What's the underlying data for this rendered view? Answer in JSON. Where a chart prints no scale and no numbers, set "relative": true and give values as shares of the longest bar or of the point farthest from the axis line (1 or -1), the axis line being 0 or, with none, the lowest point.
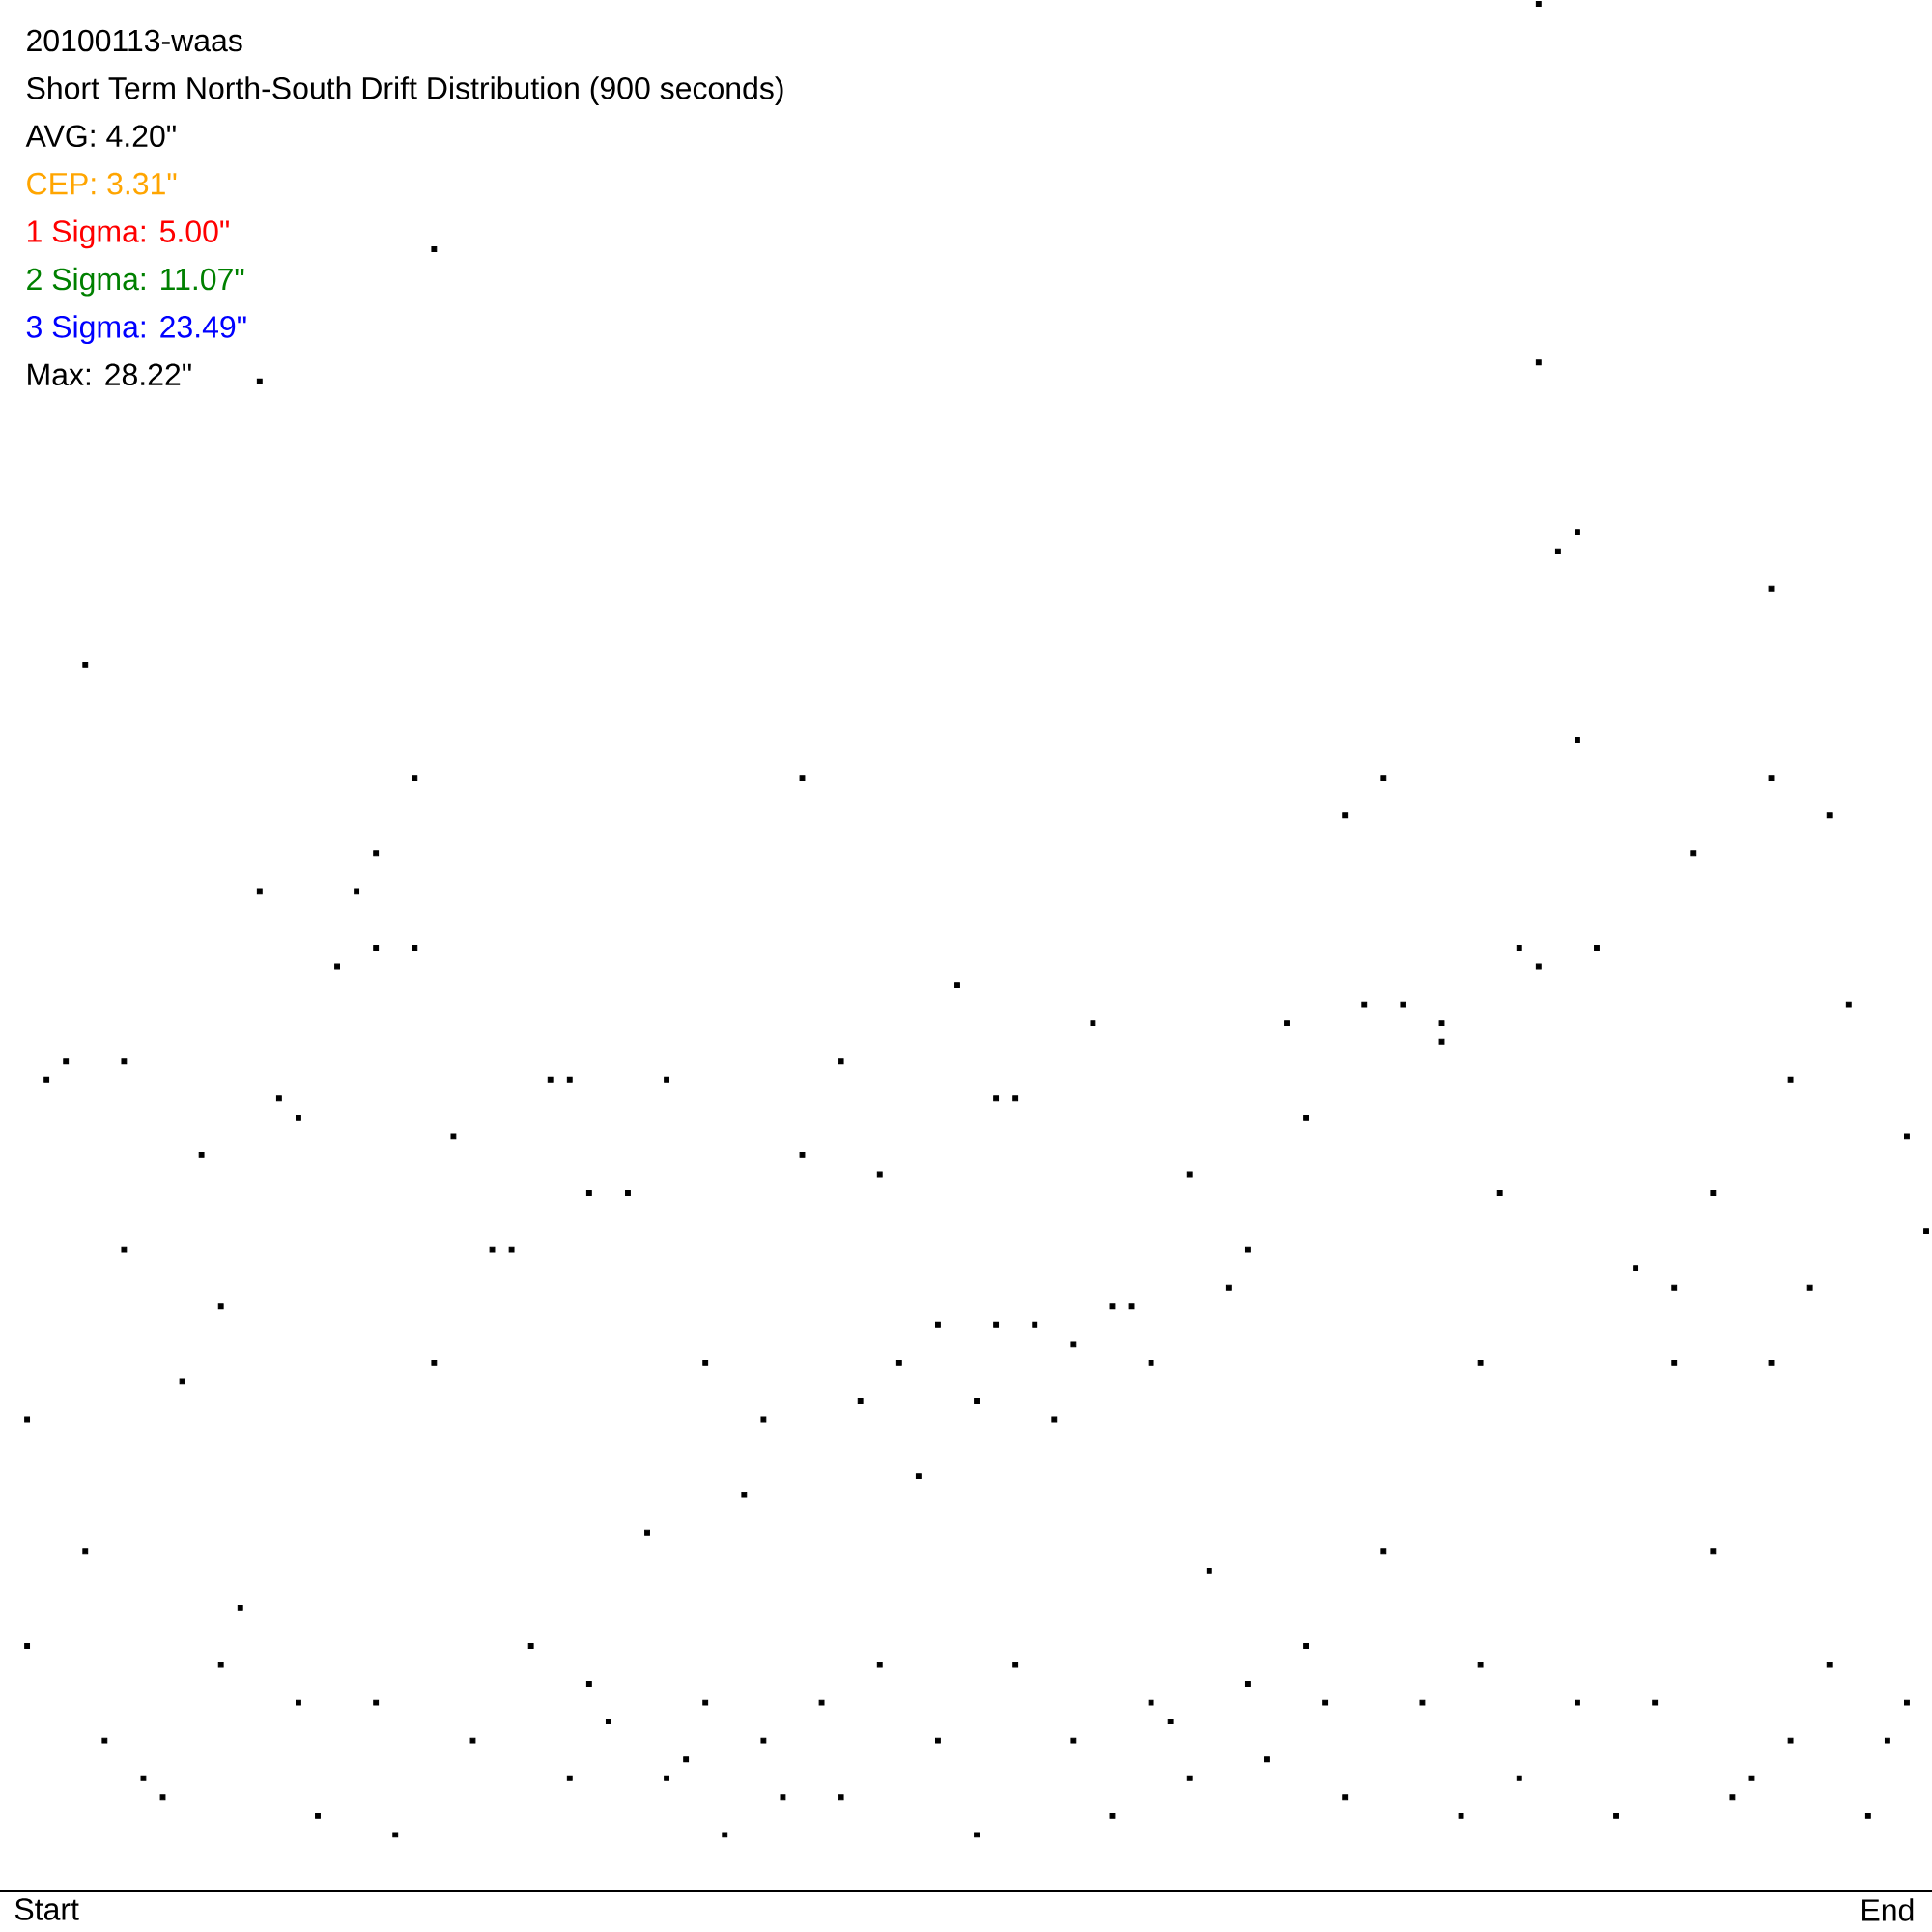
{
  "chart_data": {
    "type": "scatter",
    "title": "20100113-waas",
    "subtitle": "Short Term North-South Drift Distribution (900 seconds)",
    "annotations": [
      "AVG: 4.20\"",
      "CEP: 3.31\"",
      "1 Sigma: 5.00\"",
      "2 Sigma: 11.07\"",
      "3 Sigma: 23.49\"",
      "Max: 28.22\""
    ],
    "relative": true,
    "marker": "square",
    "tick_labels": "x",
    "categories": [
      null,
      "Start",
      null,
      null,
      null,
      null,
      null,
      null,
      null,
      null,
      null,
      null,
      null,
      null,
      null,
      null,
      null,
      null,
      null,
      null,
      null,
      null,
      null,
      null,
      null,
      null,
      null,
      null,
      null,
      null,
      null,
      null,
      null,
      null,
      null,
      null,
      null,
      null,
      null,
      null,
      null,
      null,
      null,
      null,
      null,
      null,
      null,
      null,
      null,
      null,
      null,
      null,
      null,
      null,
      null,
      null,
      null,
      null,
      null,
      null,
      null,
      null,
      null,
      null,
      null,
      null,
      null,
      null,
      null,
      null,
      null,
      null,
      null,
      null,
      null,
      null,
      null,
      null,
      null,
      null,
      null,
      null,
      null,
      null,
      null,
      null,
      null,
      null,
      null,
      null,
      null,
      null,
      null,
      null,
      null,
      null,
      "End",
      null,
      null
    ],
    "series": [
      {
        "color": "#000000",
        "values": [
          0.25,
          0.43,
          0.44,
          0.65,
          0.08,
          0.34,
          0.06,
          0.05,
          0.27,
          0.39,
          0.31,
          0.15,
          0.53,
          0.42,
          0.41,
          0.04,
          0.49,
          0.53,
          0.5,
          0.03,
          0.5,
          0.87,
          0.4,
          0.08,
          0.34,
          0.34,
          0.13,
          0.43,
          0.43,
          0.37,
          0.09,
          0.37,
          0.19,
          0.43,
          0.07,
          0.28,
          0.03,
          0.21,
          0.25,
          0.05,
          0.59,
          0.1,
          0.44,
          0.26,
          0.38,
          0.28,
          0.22,
          0.3,
          0.48,
          0.26,
          0.3,
          0.42,
          0.3,
          0.25,
          0.29,
          0.46,
          0.31,
          0.31,
          0.28,
          0.09,
          0.38,
          0.17,
          0.32,
          0.34,
          0.07,
          0.46,
          0.41,
          0.1,
          0.57,
          0.47,
          0.59,
          0.47,
          0.1,
          0.45,
          0.04,
          0.28,
          0.37,
          0.5,
          1.0,
          0.71,
          0.72,
          0.5,
          0.04,
          0.33,
          0.1,
          0.32,
          0.55,
          0.37,
          0.05,
          0.06,
          0.69,
          0.43,
          0.32,
          0.57,
          0.47,
          0.04,
          0.08,
          0.4,
          0.35
        ]
      },
      {
        "color": "#000000",
        "values": [
          0.13,
          null,
          null,
          0.18,
          null,
          0.44,
          null,
          null,
          null,
          null,
          0.12,
          null,
          0.8,
          null,
          0.1,
          null,
          null,
          null,
          0.55,
          null,
          0.59,
          0.28,
          null,
          null,
          null,
          null,
          null,
          null,
          0.06,
          0.11,
          null,
          null,
          null,
          0.06,
          null,
          0.1,
          null,
          null,
          0.08,
          null,
          0.39,
          null,
          0.05,
          null,
          0.12,
          null,
          null,
          0.08,
          null,
          0.03,
          0.42,
          0.12,
          null,
          null,
          0.08,
          null,
          0.04,
          null,
          0.1,
          null,
          0.06,
          null,
          null,
          0.11,
          null,
          null,
          0.13,
          null,
          0.05,
          null,
          0.18,
          null,
          null,
          0.46,
          null,
          0.12,
          null,
          0.06,
          0.81,
          null,
          0.61,
          null,
          null,
          null,
          null,
          0.28,
          null,
          0.18,
          null,
          null,
          0.59,
          0.08,
          null,
          0.12,
          null,
          null,
          null,
          0.1,
          null
        ]
      },
      {
        "color": "#000000",
        "values": [
          null,
          null,
          null,
          null,
          null,
          null,
          null,
          null,
          null,
          null,
          null,
          null,
          null,
          null,
          null,
          null,
          null,
          null,
          0.1,
          null,
          null,
          null,
          null,
          null,
          null,
          null,
          null,
          null,
          null,
          null,
          null,
          null,
          null,
          null,
          null,
          null,
          null,
          null,
          null,
          null,
          null,
          null,
          null,
          null,
          null,
          null,
          null,
          null,
          null,
          null,
          null,
          null,
          null,
          null,
          null,
          null,
          null,
          null,
          null,
          null,
          null,
          null,
          null,
          null,
          null,
          null,
          null,
          null,
          null,
          null,
          null,
          null,
          null,
          null,
          null,
          null,
          null,
          null,
          0.49,
          null,
          0.1,
          null,
          null,
          null,
          null,
          null,
          null,
          null,
          null,
          null,
          0.28,
          null,
          null,
          null,
          null,
          null,
          null,
          null,
          null
        ]
      }
    ]
  }
}
